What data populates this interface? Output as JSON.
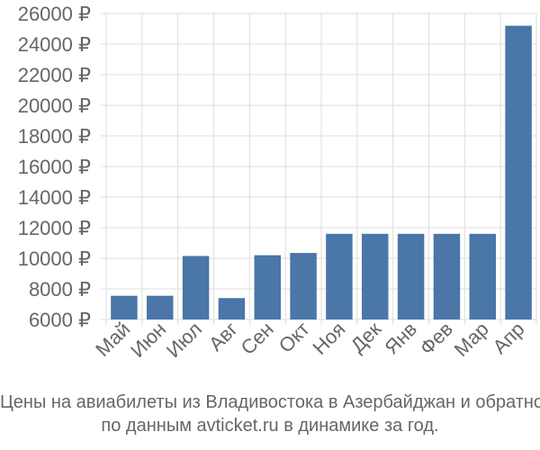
{
  "chart_data": {
    "type": "bar",
    "categories": [
      "Май",
      "Июн",
      "Июл",
      "Авг",
      "Сен",
      "Окт",
      "Ноя",
      "Дек",
      "Янв",
      "Фев",
      "Мар",
      "Апр"
    ],
    "values": [
      7550,
      7550,
      10150,
      7400,
      10200,
      10350,
      11600,
      11600,
      11600,
      11600,
      11600,
      25200
    ],
    "ylim": [
      6000,
      26000
    ],
    "yticks": [
      6000,
      8000,
      10000,
      12000,
      14000,
      16000,
      18000,
      20000,
      22000,
      24000,
      26000
    ],
    "ytick_labels": [
      "6000 ₽",
      "8000 ₽",
      "10000 ₽",
      "12000 ₽",
      "14000 ₽",
      "16000 ₽",
      "18000 ₽",
      "20000 ₽",
      "22000 ₽",
      "24000 ₽",
      "26000 ₽"
    ],
    "grid": true,
    "colors": {
      "bar": "#4a76a8",
      "grid": "#dddddd",
      "text": "#666666"
    }
  },
  "caption": {
    "line1": "Цены на авиабилеты из Владивостока в Азербайджан и обратно",
    "line2": "по данным avticket.ru в динамике за год."
  }
}
